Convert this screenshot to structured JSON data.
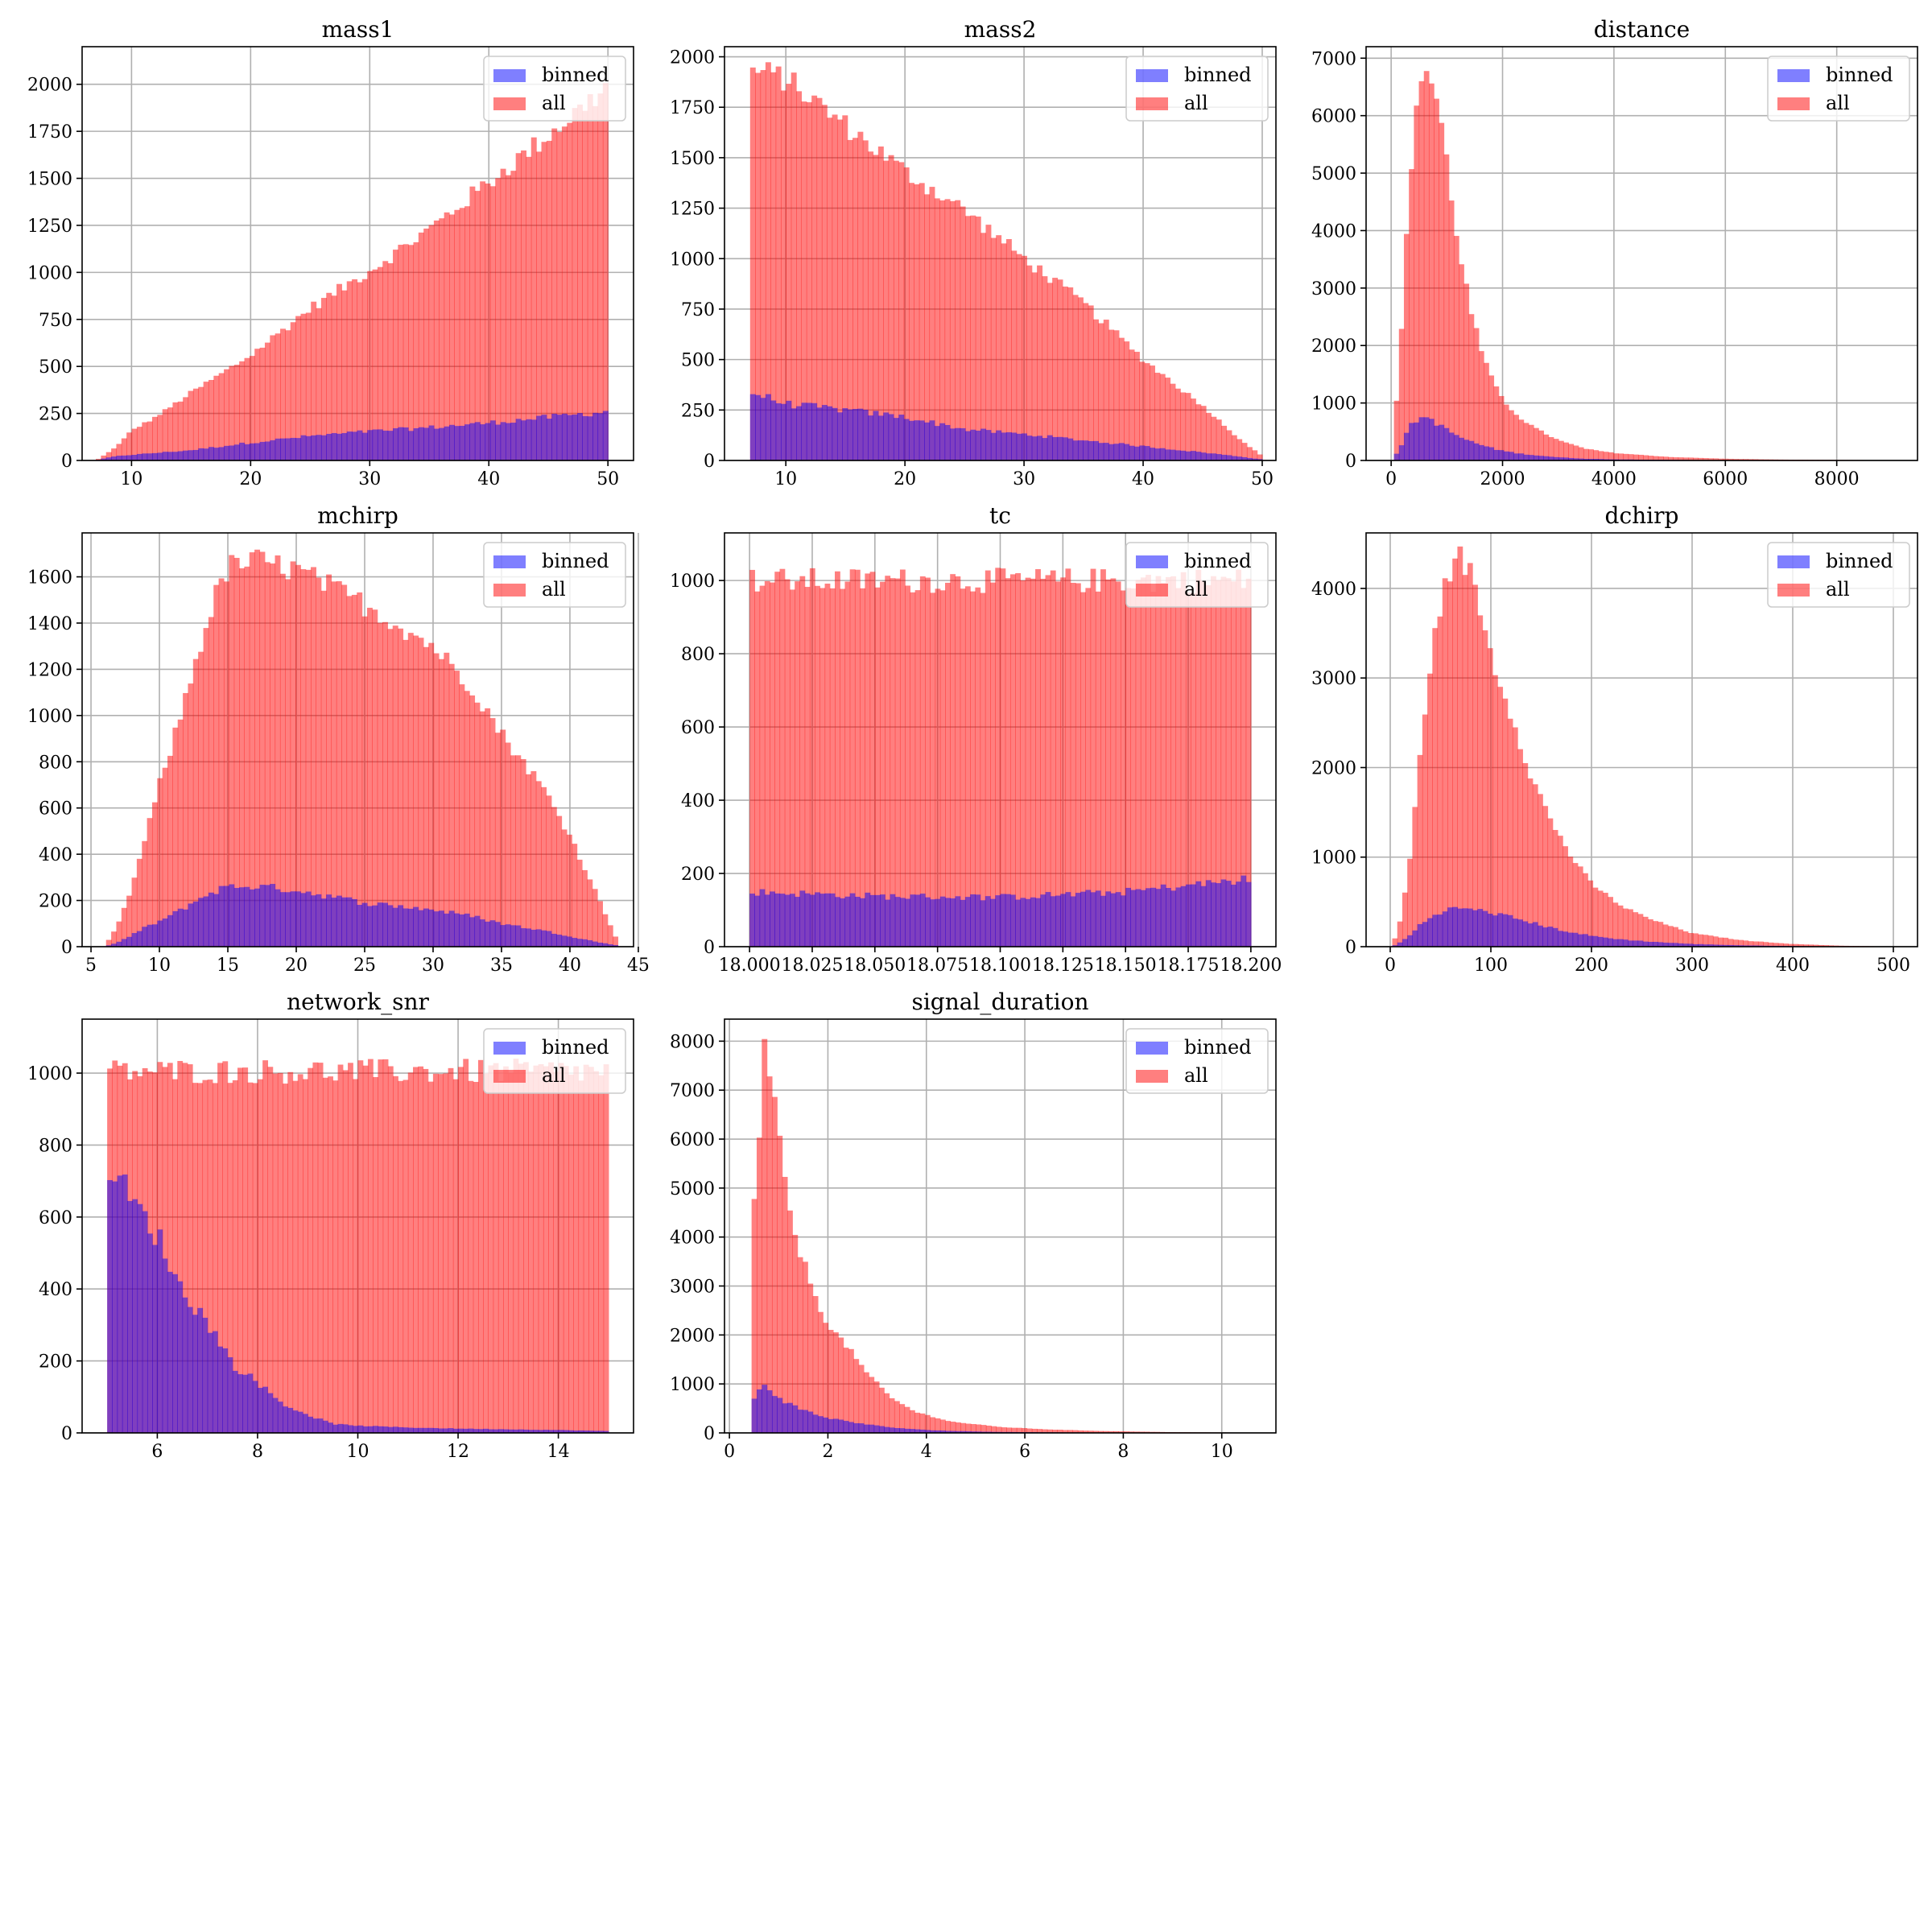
{
  "figure": {
    "legend_labels": {
      "binned": "binned",
      "all": "all"
    },
    "colors": {
      "binned": "#0000ff",
      "all": "#ff0000",
      "opacity": 0.5,
      "grid": "#b0b0b0",
      "axis": "#000000"
    }
  },
  "chart_data": [
    {
      "type": "bar",
      "title": "mass1",
      "xlim": [
        5.85,
        52.15
      ],
      "ylim": [
        0,
        2200
      ],
      "xticks": [
        10,
        20,
        30,
        40,
        50
      ],
      "yticks": [
        0,
        250,
        500,
        750,
        1000,
        1250,
        1500,
        1750,
        2000
      ],
      "grid": true,
      "legend": "top-right",
      "profile": {
        "x": [
          7,
          8,
          9,
          10,
          12,
          15,
          20,
          25,
          30,
          35,
          40,
          45,
          50
        ],
        "all": [
          0,
          40,
          90,
          160,
          230,
          360,
          560,
          810,
          1010,
          1230,
          1480,
          1730,
          1990
        ],
        "binned": [
          0,
          15,
          25,
          30,
          40,
          55,
          95,
          130,
          155,
          175,
          200,
          230,
          260
        ]
      }
    },
    {
      "type": "bar",
      "title": "mass2",
      "xlim": [
        4.85,
        51.15
      ],
      "ylim": [
        0,
        2050
      ],
      "xticks": [
        10,
        20,
        30,
        40,
        50
      ],
      "yticks": [
        0,
        250,
        500,
        750,
        1000,
        1250,
        1500,
        1750,
        2000
      ],
      "grid": true,
      "legend": "top-right",
      "profile": {
        "x": [
          7,
          10,
          15,
          20,
          25,
          30,
          35,
          40,
          45,
          48,
          50
        ],
        "all": [
          1940,
          1890,
          1660,
          1430,
          1240,
          1000,
          780,
          500,
          270,
          110,
          20
        ],
        "binned": [
          340,
          280,
          250,
          215,
          155,
          130,
          100,
          70,
          40,
          20,
          5
        ]
      }
    },
    {
      "type": "bar",
      "title": "distance",
      "xlim": [
        -450,
        9450
      ],
      "ylim": [
        0,
        7200
      ],
      "xticks": [
        0,
        2000,
        4000,
        6000,
        8000
      ],
      "yticks": [
        0,
        1000,
        2000,
        3000,
        4000,
        5000,
        6000,
        7000
      ],
      "grid": true,
      "legend": "top-right",
      "profile": {
        "x": [
          50,
          150,
          250,
          350,
          450,
          550,
          650,
          750,
          850,
          950,
          1050,
          1250,
          1450,
          1650,
          1850,
          2050,
          2300,
          2600,
          3000,
          3500,
          4000,
          5000,
          6000,
          7000,
          9000
        ],
        "all": [
          400,
          1780,
          3480,
          4950,
          6250,
          6700,
          6800,
          6480,
          6150,
          5550,
          4750,
          3500,
          2500,
          1800,
          1300,
          1000,
          750,
          550,
          350,
          200,
          130,
          60,
          30,
          15,
          5
        ],
        "binned": [
          60,
          200,
          420,
          600,
          700,
          740,
          760,
          690,
          620,
          560,
          500,
          400,
          320,
          260,
          200,
          160,
          120,
          90,
          55,
          30,
          20,
          10,
          5,
          3,
          1
        ]
      }
    },
    {
      "type": "bar",
      "title": "mchirp",
      "xlim": [
        4.35,
        44.65
      ],
      "ylim": [
        0,
        1790
      ],
      "xticks": [
        5,
        10,
        15,
        20,
        25,
        30,
        35,
        40,
        45
      ],
      "yticks": [
        0,
        200,
        400,
        600,
        800,
        1000,
        1200,
        1400,
        1600
      ],
      "grid": true,
      "legend": "top-right",
      "profile": {
        "x": [
          6.1,
          7,
          8,
          9,
          10,
          11,
          12,
          13,
          14,
          15,
          17,
          20,
          25,
          30,
          33,
          35,
          38,
          40,
          42,
          43.5
        ],
        "all": [
          10,
          100,
          260,
          480,
          700,
          890,
          1100,
          1310,
          1500,
          1640,
          1670,
          1630,
          1480,
          1300,
          1110,
          920,
          690,
          480,
          220,
          20
        ],
        "binned": [
          2,
          20,
          50,
          85,
          110,
          140,
          175,
          210,
          240,
          260,
          262,
          245,
          190,
          160,
          130,
          100,
          70,
          45,
          20,
          5
        ]
      }
    },
    {
      "type": "bar",
      "title": "tc",
      "xlim": [
        17.99,
        18.21
      ],
      "ylim": [
        0,
        1130
      ],
      "xticks": [
        18.0,
        18.025,
        18.05,
        18.075,
        18.1,
        18.125,
        18.15,
        18.175,
        18.2
      ],
      "xticklabels": [
        "18.000",
        "18.025",
        "18.050",
        "18.075",
        "18.100",
        "18.125",
        "18.150",
        "18.175",
        "18.200"
      ],
      "yticks": [
        0,
        200,
        400,
        600,
        800,
        1000
      ],
      "grid": true,
      "legend": "top-right",
      "profile": {
        "x": [
          18.0,
          18.05,
          18.1,
          18.15,
          18.2
        ],
        "all": [
          1000,
          1000,
          1000,
          1000,
          1000
        ],
        "binned": [
          150,
          138,
          135,
          150,
          185
        ]
      }
    },
    {
      "type": "bar",
      "title": "dchirp",
      "xlim": [
        -24,
        524
      ],
      "ylim": [
        0,
        4620
      ],
      "xticks": [
        0,
        100,
        200,
        300,
        400,
        500
      ],
      "yticks": [
        0,
        1000,
        2000,
        3000,
        4000
      ],
      "grid": true,
      "legend": "top-right",
      "profile": {
        "x": [
          2,
          10,
          20,
          30,
          40,
          50,
          60,
          70,
          80,
          90,
          100,
          120,
          140,
          160,
          180,
          200,
          230,
          260,
          300,
          350,
          400,
          450,
          500
        ],
        "all": [
          0,
          300,
          1000,
          2200,
          3200,
          3800,
          4250,
          4350,
          4150,
          3750,
          3250,
          2600,
          1900,
          1400,
          1000,
          700,
          450,
          300,
          150,
          70,
          30,
          10,
          2
        ],
        "binned": [
          0,
          50,
          130,
          250,
          330,
          390,
          420,
          430,
          420,
          400,
          380,
          330,
          270,
          210,
          160,
          120,
          80,
          55,
          30,
          15,
          7,
          2,
          0
        ]
      }
    },
    {
      "type": "bar",
      "title": "network_snr",
      "xlim": [
        4.5,
        15.5
      ],
      "ylim": [
        0,
        1150
      ],
      "xticks": [
        6,
        8,
        10,
        12,
        14
      ],
      "yticks": [
        0,
        200,
        400,
        600,
        800,
        1000
      ],
      "grid": true,
      "legend": "top-right",
      "profile": {
        "x": [
          5,
          15
        ],
        "all": [
          1005,
          1005
        ],
        "binned_x": [
          5,
          5.5,
          6,
          6.5,
          7,
          7.5,
          8,
          8.5,
          9,
          9.5,
          10,
          11,
          12,
          13,
          14,
          15
        ],
        "binned": [
          760,
          640,
          550,
          390,
          310,
          190,
          140,
          80,
          50,
          25,
          20,
          15,
          12,
          10,
          8,
          5
        ]
      }
    },
    {
      "type": "bar",
      "title": "signal_duration",
      "xlim": [
        -0.1,
        11.1
      ],
      "ylim": [
        0,
        8450
      ],
      "xticks": [
        0,
        2,
        4,
        6,
        8,
        10
      ],
      "yticks": [
        0,
        1000,
        2000,
        3000,
        4000,
        5000,
        6000,
        7000,
        8000
      ],
      "grid": true,
      "legend": "top-right",
      "profile": {
        "x": [
          0.45,
          0.6,
          0.7,
          0.8,
          0.9,
          1.0,
          1.2,
          1.4,
          1.7,
          2.0,
          2.4,
          2.8,
          3.3,
          3.8,
          4.5,
          5.5,
          6.5,
          7.5,
          9,
          10.8
        ],
        "all": [
          4100,
          5800,
          7900,
          7500,
          6800,
          6000,
          4600,
          3800,
          2900,
          2200,
          1750,
          1200,
          700,
          420,
          230,
          120,
          70,
          40,
          15,
          5
        ],
        "binned": [
          650,
          850,
          1000,
          920,
          800,
          720,
          600,
          500,
          400,
          300,
          240,
          170,
          110,
          70,
          40,
          20,
          12,
          7,
          3,
          1
        ]
      }
    }
  ]
}
